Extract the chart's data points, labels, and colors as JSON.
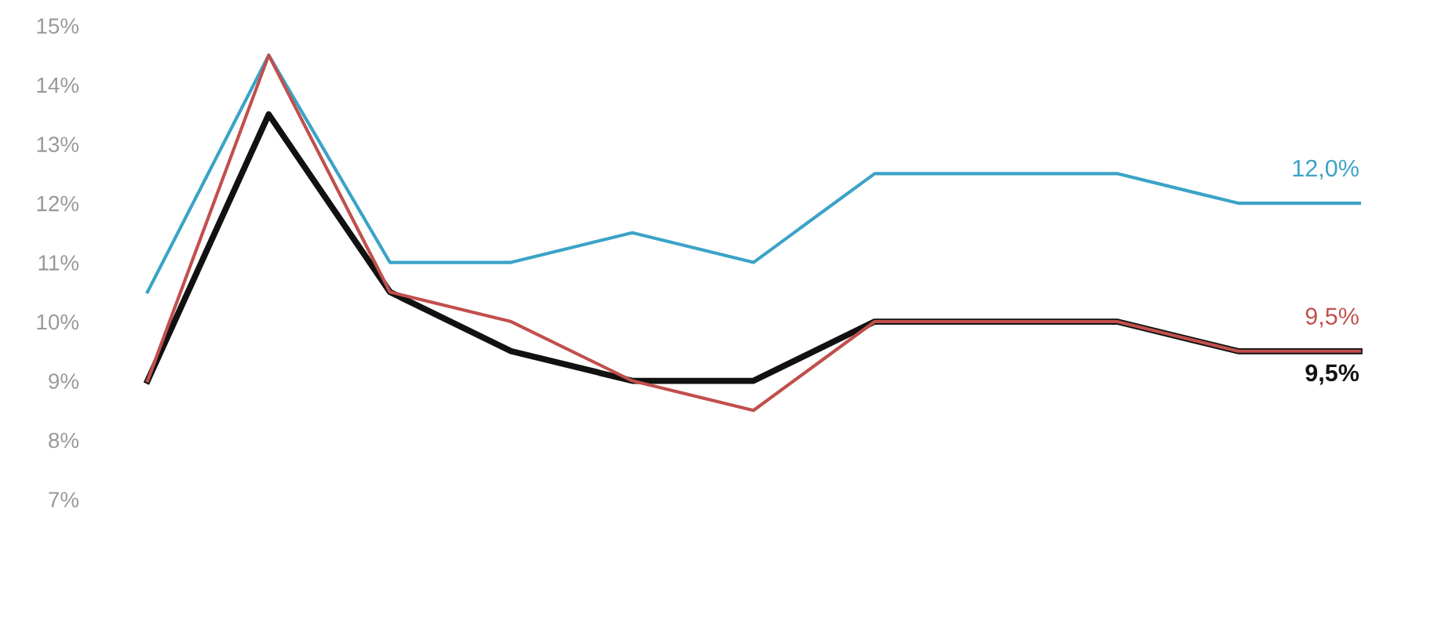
{
  "chart_data": {
    "type": "line",
    "categories": [
      null,
      null,
      null,
      null,
      null,
      null,
      null,
      null,
      null,
      null,
      null
    ],
    "series": [
      {
        "color": "#3ba3c7",
        "values": [
          10.5,
          14.5,
          11,
          11,
          11.5,
          11,
          12.5,
          12.5,
          12.5,
          12,
          12
        ],
        "value_labels": [
          null,
          null,
          null,
          null,
          null,
          null,
          null,
          null,
          null,
          null,
          "12,0%"
        ]
      },
      {
        "color": "#c0504d",
        "values": [
          9,
          14.5,
          10.5,
          10,
          9,
          8.5,
          10,
          10,
          10,
          9.5,
          9.5
        ],
        "value_labels": [
          null,
          null,
          null,
          null,
          null,
          null,
          null,
          null,
          null,
          null,
          "9,5%"
        ]
      },
      {
        "color": "#111111",
        "values": [
          9,
          13.5,
          10.5,
          9.5,
          9,
          9,
          10,
          10,
          10,
          9.5,
          9.5
        ],
        "value_labels": [
          null,
          null,
          null,
          null,
          null,
          null,
          null,
          null,
          null,
          null,
          "9,5%"
        ]
      }
    ],
    "ylim": [
      7,
      15
    ],
    "yticks": [
      {
        "value": 7,
        "label": "7%"
      },
      {
        "value": 8,
        "label": "8%"
      },
      {
        "value": 9,
        "label": "9%"
      },
      {
        "value": 10,
        "label": "10%"
      },
      {
        "value": 11,
        "label": "11%"
      },
      {
        "value": 12,
        "label": "12%"
      },
      {
        "value": 13,
        "label": "13%"
      },
      {
        "value": 14,
        "label": "14%"
      },
      {
        "value": 15,
        "label": "15%"
      }
    ],
    "grid": false,
    "marker": "none",
    "line_style": "solid"
  }
}
